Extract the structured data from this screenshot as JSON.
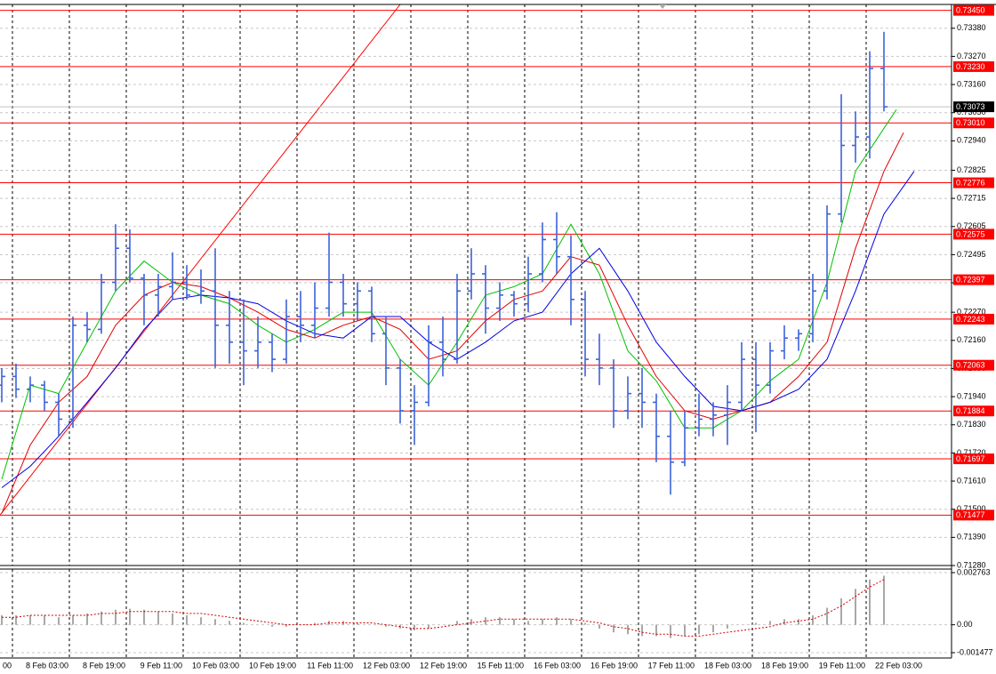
{
  "chart_data": [
    {
      "type": "ohlc",
      "x": [
        -3,
        1,
        5,
        9,
        13,
        17,
        21,
        25,
        29,
        33,
        37,
        41,
        45,
        49,
        53,
        57,
        61,
        65,
        69,
        73,
        77,
        81,
        85,
        89,
        93,
        97,
        101,
        105,
        109,
        113,
        117,
        121,
        125,
        129,
        133,
        137,
        141,
        145,
        149,
        153,
        157,
        161,
        165,
        169,
        173,
        177,
        181,
        185,
        189,
        193,
        197,
        201,
        205,
        209,
        213,
        217,
        221,
        225,
        229,
        233,
        237,
        241,
        245
      ],
      "open": [
        0.71985,
        0.72019,
        0.71969,
        0.71985,
        0.71918,
        0.71852,
        0.72219,
        0.72203,
        0.72387,
        0.7252,
        0.72403,
        0.72337,
        0.7237,
        0.72387,
        0.72337,
        0.72353,
        0.72219,
        0.72153,
        0.72119,
        0.72153,
        0.72086,
        0.72253,
        0.72219,
        0.72286,
        0.72387,
        0.72303,
        0.72353,
        0.72186,
        0.72052,
        0.71885,
        0.71918,
        0.72153,
        0.72086,
        0.72353,
        0.7242,
        0.72286,
        0.72337,
        0.72303,
        0.7242,
        0.72554,
        0.72487,
        0.7232,
        0.72086,
        0.72052,
        0.71885,
        0.71952,
        0.71918,
        0.71785,
        0.71684,
        0.71818,
        0.71852,
        0.71868,
        0.71918,
        0.72086,
        0.71985,
        0.72119,
        0.72169,
        0.72186,
        0.72353,
        0.72654,
        0.72922,
        0.72955,
        0.73223
      ],
      "high": [
        0.72052,
        0.72069,
        0.72019,
        0.72002,
        0.71952,
        0.72253,
        0.7227,
        0.7242,
        0.72614,
        0.72594,
        0.7242,
        0.7242,
        0.72504,
        0.72454,
        0.72437,
        0.7252,
        0.72353,
        0.7232,
        0.72253,
        0.72186,
        0.7232,
        0.72353,
        0.72387,
        0.72581,
        0.7242,
        0.72387,
        0.7237,
        0.72253,
        0.72086,
        0.71985,
        0.72219,
        0.72253,
        0.7242,
        0.7252,
        0.72454,
        0.72387,
        0.72353,
        0.72487,
        0.72621,
        0.72661,
        0.72571,
        0.72353,
        0.72186,
        0.72086,
        0.72019,
        0.72052,
        0.71952,
        0.71885,
        0.71885,
        0.71952,
        0.71918,
        0.71985,
        0.72153,
        0.72153,
        0.72153,
        0.72219,
        0.72203,
        0.7242,
        0.72688,
        0.73122,
        0.73055,
        0.7329,
        0.73366
      ],
      "low": [
        0.71918,
        0.71935,
        0.71918,
        0.71885,
        0.71785,
        0.71818,
        0.72153,
        0.72186,
        0.72353,
        0.72387,
        0.72219,
        0.72253,
        0.7232,
        0.7232,
        0.72303,
        0.72052,
        0.72069,
        0.71985,
        0.72052,
        0.72036,
        0.72069,
        0.72153,
        0.72169,
        0.72253,
        0.72253,
        0.72236,
        0.72153,
        0.71985,
        0.71835,
        0.71751,
        0.71902,
        0.72019,
        0.72069,
        0.7232,
        0.72186,
        0.72236,
        0.72253,
        0.7227,
        0.72387,
        0.7242,
        0.72219,
        0.72019,
        0.71985,
        0.71818,
        0.71852,
        0.71818,
        0.71684,
        0.71557,
        0.71668,
        0.71785,
        0.71785,
        0.71751,
        0.71885,
        0.71801,
        0.71952,
        0.72086,
        0.72119,
        0.72153,
        0.7232,
        0.72621,
        0.72855,
        0.72871,
        0.73055
      ],
      "close": [
        0.72019,
        0.71969,
        0.71985,
        0.71918,
        0.71852,
        0.72219,
        0.72203,
        0.72387,
        0.7252,
        0.72403,
        0.72337,
        0.7237,
        0.72387,
        0.72337,
        0.72353,
        0.72219,
        0.72153,
        0.72119,
        0.72153,
        0.72086,
        0.72253,
        0.72219,
        0.72286,
        0.72387,
        0.72303,
        0.72353,
        0.72186,
        0.72052,
        0.71885,
        0.71918,
        0.72153,
        0.72086,
        0.72353,
        0.7242,
        0.72286,
        0.72337,
        0.72303,
        0.7242,
        0.72554,
        0.72487,
        0.7232,
        0.72086,
        0.72052,
        0.71885,
        0.71952,
        0.71918,
        0.71785,
        0.71684,
        0.71818,
        0.71852,
        0.71868,
        0.71918,
        0.72086,
        0.71985,
        0.72119,
        0.72169,
        0.72186,
        0.72353,
        0.72654,
        0.72922,
        0.72955,
        0.73223,
        0.73073
      ],
      "color": "#3d62d8",
      "moving_averages": [
        {
          "color": "#00c000",
          "x": [
            -3,
            5,
            13,
            21,
            29,
            37,
            45,
            53,
            61,
            69,
            77,
            85,
            93,
            101,
            109,
            117,
            125,
            133,
            141,
            149,
            157,
            165,
            173,
            181,
            189,
            197,
            205,
            213,
            221,
            229,
            237,
            245,
            248.5
          ],
          "values": [
            0.71617,
            0.71985,
            0.71952,
            0.72153,
            0.72353,
            0.7247,
            0.72387,
            0.72337,
            0.72303,
            0.72219,
            0.72153,
            0.72203,
            0.7227,
            0.7227,
            0.72086,
            0.71985,
            0.72153,
            0.72337,
            0.7237,
            0.7242,
            0.72614,
            0.7242,
            0.72119,
            0.72002,
            0.71818,
            0.71818,
            0.71885,
            0.72002,
            0.72086,
            0.72387,
            0.72821,
            0.72989,
            0.73062
          ]
        },
        {
          "color": "#e00000",
          "x": [
            -3,
            5,
            13,
            21,
            29,
            37,
            45,
            53,
            61,
            69,
            77,
            85,
            93,
            101,
            109,
            117,
            125,
            133,
            141,
            149,
            157,
            165,
            173,
            181,
            189,
            197,
            205,
            213,
            221,
            229,
            237,
            245,
            250.5
          ],
          "values": [
            0.71484,
            0.71751,
            0.71918,
            0.72019,
            0.72219,
            0.72337,
            0.72387,
            0.7237,
            0.72326,
            0.7227,
            0.72203,
            0.72169,
            0.72219,
            0.72253,
            0.72203,
            0.72086,
            0.72119,
            0.72236,
            0.7232,
            0.72353,
            0.72487,
            0.72454,
            0.72219,
            0.72019,
            0.71885,
            0.71852,
            0.71885,
            0.71918,
            0.72019,
            0.72153,
            0.7252,
            0.72821,
            0.72972
          ]
        },
        {
          "color": "#0000e0",
          "x": [
            -3,
            5,
            13,
            21,
            29,
            37,
            45,
            53,
            61,
            69,
            77,
            85,
            93,
            101,
            109,
            117,
            125,
            133,
            141,
            149,
            157,
            165,
            173,
            181,
            189,
            197,
            205,
            213,
            221,
            229,
            237,
            245,
            253.5
          ],
          "values": [
            0.71584,
            0.71668,
            0.71785,
            0.71918,
            0.72052,
            0.72203,
            0.7232,
            0.72337,
            0.72326,
            0.72303,
            0.72236,
            0.72186,
            0.72169,
            0.72253,
            0.72253,
            0.72153,
            0.72086,
            0.72153,
            0.72236,
            0.7227,
            0.7242,
            0.7252,
            0.72353,
            0.72153,
            0.72019,
            0.71902,
            0.71885,
            0.71918,
            0.71969,
            0.72086,
            0.72353,
            0.72654,
            0.72821
          ]
        }
      ],
      "trend_line": {
        "x": [
          -3.5,
          109
        ],
        "y": [
          0.71477,
          0.73473
        ],
        "color": "#ff0000"
      },
      "levels": [
        {
          "value": 0.7345,
          "label": "0.73450"
        },
        {
          "value": 0.7323,
          "label": "0.73230"
        },
        {
          "value": 0.7301,
          "label": "0.73010"
        },
        0.72776,
        0.72575,
        0.72397,
        0.72243,
        0.72063,
        0.71884,
        0.71697,
        0.71477
      ],
      "level_color": "#ff0000",
      "current_price": 0.73073,
      "xlim": [
        -3.5,
        264
      ],
      "ylim": [
        0.7128,
        0.73473
      ],
      "xticks": [
        {
          "value": -16,
          "label": "00"
        },
        {
          "value": 0,
          "label": "8 Feb 03:00"
        },
        {
          "value": 16,
          "label": "8 Feb 19:00"
        },
        {
          "value": 32,
          "label": "9 Feb 11:00"
        },
        {
          "value": 48,
          "label": "10 Feb 03:00"
        },
        {
          "value": 64,
          "label": "10 Feb 19:00"
        },
        {
          "value": 80,
          "label": "11 Feb 11:00"
        },
        {
          "value": 96,
          "label": "12 Feb 03:00"
        },
        {
          "value": 112,
          "label": "12 Feb 19:00"
        },
        {
          "value": 128,
          "label": "15 Feb 11:00"
        },
        {
          "value": 144,
          "label": "16 Feb 03:00"
        },
        {
          "value": 160,
          "label": "16 Feb 19:00"
        },
        {
          "value": 176,
          "label": "17 Feb 11:00"
        },
        {
          "value": 192,
          "label": "18 Feb 03:00"
        },
        {
          "value": 208,
          "label": "18 Feb 19:00"
        },
        {
          "value": 224,
          "label": "19 Feb 11:00"
        },
        {
          "value": 240,
          "label": "22 Feb 03:00"
        }
      ],
      "yticks": [
        {
          "value": 0.7338,
          "label": "0.73380"
        },
        {
          "value": 0.7327,
          "label": "0.73270"
        },
        {
          "value": 0.7316,
          "label": "0.73160"
        },
        {
          "value": 0.7305,
          "label": "0.73050"
        },
        {
          "value": 0.7294,
          "label": "0.72940"
        },
        0.72825,
        0.72715,
        0.72605,
        0.72495,
        0.72385,
        {
          "value": 0.7227,
          "label": "0.72270"
        },
        {
          "value": 0.7216,
          "label": "0.72160"
        },
        {
          "value": 0.7205,
          "label": "0.72050"
        },
        {
          "value": 0.7194,
          "label": "0.71940"
        },
        {
          "value": 0.7183,
          "label": "0.71830"
        },
        {
          "value": 0.7172,
          "label": "0.71720"
        },
        {
          "value": 0.7161,
          "label": "0.71610"
        },
        {
          "value": 0.715,
          "label": "0.71500"
        },
        {
          "value": 0.7139,
          "label": "0.71390"
        },
        {
          "value": 0.7128,
          "label": "0.71280"
        }
      ],
      "grid": true
    },
    {
      "type": "bar",
      "x": [
        -3,
        1,
        5,
        9,
        13,
        17,
        21,
        25,
        29,
        33,
        37,
        41,
        45,
        49,
        53,
        57,
        61,
        65,
        69,
        73,
        77,
        81,
        85,
        89,
        93,
        97,
        101,
        105,
        109,
        113,
        117,
        121,
        125,
        129,
        133,
        137,
        141,
        145,
        149,
        153,
        157,
        161,
        165,
        169,
        173,
        177,
        181,
        185,
        189,
        193,
        197,
        201,
        205,
        209,
        213,
        217,
        221,
        225,
        229,
        233,
        237,
        241,
        245
      ],
      "values": [
        0.0005,
        0.0005,
        0.0005,
        0.0005,
        0.0004,
        0.0005,
        0.0006,
        0.0007,
        0.0008,
        0.00085,
        0.0008,
        0.0007,
        0.0006,
        0.0005,
        0.0004,
        0.0003,
        0.0002,
        0.0001,
        0,
        -0.0001,
        -0.0001,
        0,
        0.0001,
        0.0002,
        0.0002,
        0.0001,
        0,
        -0.0001,
        -0.0002,
        -0.0003,
        -0.0002,
        0,
        0.0002,
        0.0003,
        0.0004,
        0.0004,
        0.0003,
        0.0002,
        0.0003,
        0.0004,
        0.0003,
        0.0001,
        -0.0002,
        -0.0004,
        -0.0005,
        -0.0006,
        -0.0006,
        -0.0007,
        -0.0006,
        -0.0005,
        -0.0004,
        -0.0002,
        0,
        0.0001,
        0.0002,
        0.0003,
        0.0003,
        0.0005,
        0.0009,
        0.0014,
        0.0019,
        0.0024,
        0.0026
      ],
      "color": "#a8a8a8",
      "signal": {
        "color": "#d00000",
        "values": [
          0.0004,
          0.0004,
          0.0005,
          0.0005,
          0.0005,
          0.0005,
          0.0005,
          0.0006,
          0.0006,
          0.0007,
          0.0007,
          0.0007,
          0.0007,
          0.0006,
          0.0006,
          0.0005,
          0.0004,
          0.0003,
          0.0002,
          0.0001,
          0,
          0,
          0,
          0.0001,
          0.0001,
          0.0001,
          0.0001,
          0,
          -0.0001,
          -0.0002,
          -0.0002,
          -0.0001,
          0,
          0.0001,
          0.0002,
          0.0003,
          0.0003,
          0.0003,
          0.0003,
          0.0003,
          0.0003,
          0.0002,
          0.0001,
          -0.0001,
          -0.0002,
          -0.0004,
          -0.0005,
          -0.0005,
          -0.0006,
          -0.0006,
          -0.0005,
          -0.0004,
          -0.0003,
          -0.0002,
          -0.0001,
          0.0001,
          0.0002,
          0.0003,
          0.0006,
          0.001,
          0.0015,
          0.002,
          0.0024
        ]
      },
      "xlim": [
        -3.5,
        264
      ],
      "ylim": [
        -0.001477,
        0.002763
      ],
      "yticks": [
        0.002763,
        {
          "value": 0,
          "label": "0.00"
        },
        -0.001477
      ]
    }
  ]
}
